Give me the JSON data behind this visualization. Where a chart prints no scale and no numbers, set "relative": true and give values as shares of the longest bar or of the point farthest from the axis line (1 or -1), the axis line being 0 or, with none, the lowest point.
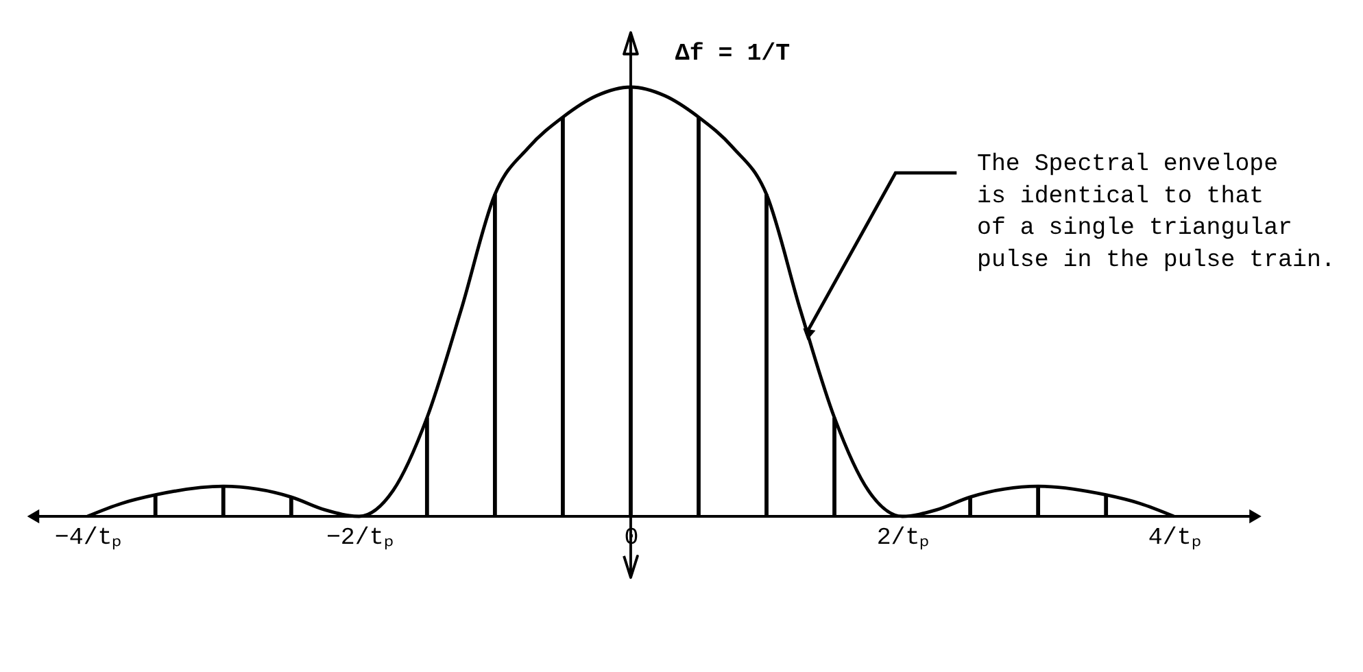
{
  "chart_data": {
    "type": "line",
    "relative": true,
    "xlim": [
      -4.4,
      4.6
    ],
    "xticks": [
      {
        "value": -4,
        "label": "−4/tₚ"
      },
      {
        "value": -2,
        "label": "−2/tₚ"
      },
      0,
      {
        "value": 2,
        "label": "2/tₚ"
      },
      {
        "value": 4,
        "label": "4/tₚ"
      }
    ],
    "grid": false,
    "marker": "none",
    "ref_lines": [
      {
        "axis": "x",
        "value": 0,
        "color": "#000000"
      }
    ],
    "line_style": "solid",
    "series": [
      {
        "color": "#000000",
        "x": [
          -4,
          -3.75,
          -3.5,
          -3,
          -2.5,
          -2.25,
          -2,
          -1.75,
          -1.5,
          -1.25,
          -1,
          -0.75,
          -0.5,
          -0.25,
          0,
          0.25,
          0.5,
          0.75,
          1,
          1.25,
          1.5,
          1.75,
          2,
          2.25,
          2.5,
          3,
          3.5,
          3.75,
          4
        ],
        "values": [
          0,
          0.03,
          0.05,
          0.07,
          0.045,
          0.015,
          0,
          0.06,
          0.23,
          0.48,
          0.75,
          0.86,
          0.93,
          0.98,
          1,
          0.98,
          0.93,
          0.86,
          0.75,
          0.48,
          0.23,
          0.06,
          0,
          0.015,
          0.045,
          0.07,
          0.05,
          0.03,
          0
        ]
      },
      {
        "type": "bar",
        "color": "#000000",
        "x": [
          -3.5,
          -3,
          -2.5,
          -1.5,
          -1,
          -0.5,
          0,
          0.5,
          1,
          1.5,
          2.5,
          3,
          3.5
        ],
        "values": [
          0.05,
          0.07,
          0.045,
          0.23,
          0.75,
          0.93,
          1,
          0.93,
          0.75,
          0.23,
          0.045,
          0.07,
          0.05
        ]
      }
    ],
    "annotations": [
      "Δf = 1/T",
      {
        "text": "The Spectral envelope\nis identical to that\nof a single triangular\npulse in the pulse train.",
        "x": 1.3,
        "y": 0.43
      }
    ]
  }
}
